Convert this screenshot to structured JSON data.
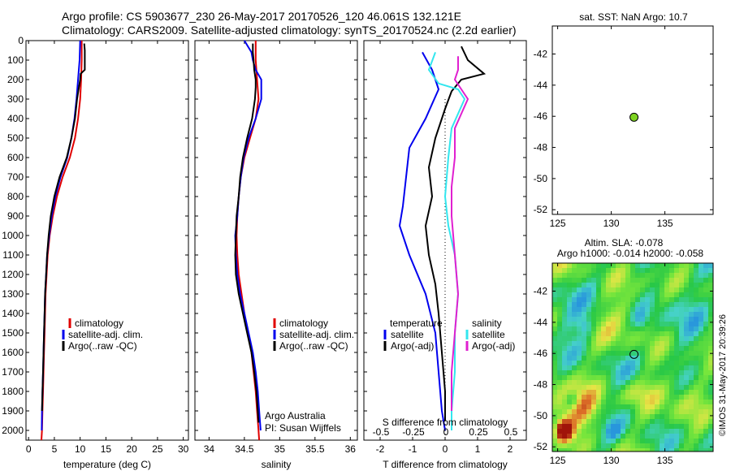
{
  "header": {
    "line1": "Argo profile: CS 5903677_230 26-May-2017 20170526_120 46.061S 132.121E",
    "line2": "Climatology: CARS2009. Satellite-adjusted climatology: synTS_20170524.nc (2.2d earlier)"
  },
  "colors": {
    "red": "#e00000",
    "blue": "#0000ee",
    "black": "#000000",
    "cyan": "#33e6ee",
    "magenta": "#e020d0",
    "green_dot": "#7ed321"
  },
  "chart_data": [
    {
      "id": "temperature",
      "type": "line",
      "xlabel": "temperature (deg C)",
      "xlim": [
        -0.5,
        31
      ],
      "ylim": [
        2050,
        0
      ],
      "xticks": [
        0,
        5,
        10,
        15,
        20,
        25,
        30
      ],
      "yticks": [
        0,
        100,
        200,
        300,
        400,
        500,
        600,
        700,
        800,
        900,
        1000,
        1100,
        1200,
        1300,
        1400,
        1500,
        1600,
        1700,
        1800,
        1900,
        2000
      ],
      "legend": [
        "climatology",
        "satellite-adj. clim.",
        "Argo(..raw -QC)"
      ],
      "series": [
        {
          "name": "climatology",
          "color": "red",
          "points": [
            [
              10.3,
              0
            ],
            [
              10.3,
              100
            ],
            [
              10.2,
              200
            ],
            [
              10,
              300
            ],
            [
              9.6,
              400
            ],
            [
              9,
              500
            ],
            [
              8,
              600
            ],
            [
              6.6,
              700
            ],
            [
              5.5,
              800
            ],
            [
              4.7,
              900
            ],
            [
              4.1,
              1000
            ],
            [
              3.7,
              1100
            ],
            [
              3.5,
              1200
            ],
            [
              3.3,
              1300
            ],
            [
              3.2,
              1400
            ],
            [
              3.1,
              1500
            ],
            [
              3,
              1600
            ],
            [
              2.9,
              1700
            ],
            [
              2.8,
              1800
            ],
            [
              2.7,
              1900
            ],
            [
              2.6,
              2000
            ],
            [
              2.5,
              2050
            ]
          ]
        },
        {
          "name": "satellite-adj. clim.",
          "color": "blue",
          "points": [
            [
              10,
              0
            ],
            [
              9.9,
              100
            ],
            [
              9.6,
              200
            ],
            [
              9.3,
              300
            ],
            [
              8.9,
              400
            ],
            [
              8.3,
              500
            ],
            [
              7.5,
              600
            ],
            [
              6.2,
              700
            ],
            [
              5.2,
              800
            ],
            [
              4.5,
              900
            ],
            [
              4,
              1000
            ],
            [
              3.6,
              1100
            ],
            [
              3.4,
              1200
            ],
            [
              3.2,
              1300
            ],
            [
              3.1,
              1400
            ],
            [
              3,
              1500
            ],
            [
              2.9,
              1600
            ],
            [
              2.8,
              1700
            ],
            [
              2.7,
              1800
            ],
            [
              2.6,
              1900
            ],
            [
              2.55,
              2000
            ]
          ]
        },
        {
          "name": "Argo(..raw -QC)",
          "color": "black",
          "points": [
            [
              10.8,
              15
            ],
            [
              10.9,
              50
            ],
            [
              10.9,
              100
            ],
            [
              10.9,
              150
            ],
            [
              10.1,
              170
            ],
            [
              10,
              200
            ],
            [
              9.7,
              250
            ],
            [
              9.4,
              300
            ],
            [
              9,
              400
            ],
            [
              8.3,
              500
            ],
            [
              7.4,
              600
            ],
            [
              6,
              700
            ],
            [
              5,
              800
            ],
            [
              4.3,
              900
            ],
            [
              3.9,
              1000
            ],
            [
              3.6,
              1100
            ],
            [
              3.4,
              1200
            ],
            [
              3.2,
              1300
            ],
            [
              3.1,
              1400
            ],
            [
              3,
              1500
            ],
            [
              2.9,
              1600
            ],
            [
              2.8,
              1700
            ],
            [
              2.7,
              1800
            ],
            [
              2.6,
              1900
            ]
          ]
        }
      ]
    },
    {
      "id": "salinity",
      "type": "line",
      "xlabel": "salinity",
      "xlim": [
        33.8,
        36.1
      ],
      "ylim": [
        2050,
        0
      ],
      "xticks": [
        34,
        34.5,
        35,
        35.5,
        36
      ],
      "legend": [
        "climatology",
        "satellite-adj. clim.",
        "Argo(..raw -QC)"
      ],
      "annotation": [
        "Argo Australia",
        "PI: Susan Wijffels"
      ],
      "series": [
        {
          "name": "climatology",
          "color": "red",
          "points": [
            [
              34.66,
              0
            ],
            [
              34.66,
              100
            ],
            [
              34.68,
              200
            ],
            [
              34.7,
              300
            ],
            [
              34.66,
              400
            ],
            [
              34.58,
              500
            ],
            [
              34.5,
              600
            ],
            [
              34.45,
              700
            ],
            [
              34.42,
              800
            ],
            [
              34.4,
              900
            ],
            [
              34.39,
              1000
            ],
            [
              34.4,
              1100
            ],
            [
              34.42,
              1200
            ],
            [
              34.46,
              1300
            ],
            [
              34.5,
              1400
            ],
            [
              34.55,
              1500
            ],
            [
              34.6,
              1600
            ],
            [
              34.63,
              1700
            ],
            [
              34.66,
              1800
            ],
            [
              34.68,
              1900
            ],
            [
              34.7,
              2000
            ],
            [
              34.71,
              2050
            ]
          ]
        },
        {
          "name": "satellite-adj. clim.",
          "color": "blue",
          "points": [
            [
              34.5,
              0
            ],
            [
              34.6,
              60
            ],
            [
              34.62,
              100
            ],
            [
              34.66,
              150
            ],
            [
              34.74,
              200
            ],
            [
              34.74,
              300
            ],
            [
              34.66,
              400
            ],
            [
              34.56,
              500
            ],
            [
              34.49,
              600
            ],
            [
              34.45,
              700
            ],
            [
              34.42,
              800
            ],
            [
              34.4,
              900
            ],
            [
              34.37,
              1000
            ],
            [
              34.38,
              1100
            ],
            [
              34.4,
              1200
            ],
            [
              34.44,
              1300
            ],
            [
              34.5,
              1400
            ],
            [
              34.56,
              1500
            ],
            [
              34.62,
              1600
            ],
            [
              34.66,
              1700
            ],
            [
              34.69,
              1800
            ],
            [
              34.71,
              1900
            ],
            [
              34.73,
              2000
            ]
          ]
        },
        {
          "name": "Argo(..raw -QC)",
          "color": "black",
          "points": [
            [
              34.62,
              15
            ],
            [
              34.62,
              60
            ],
            [
              34.63,
              100
            ],
            [
              34.64,
              150
            ],
            [
              34.66,
              200
            ],
            [
              34.66,
              240
            ],
            [
              34.65,
              300
            ],
            [
              34.61,
              400
            ],
            [
              34.54,
              500
            ],
            [
              34.48,
              600
            ],
            [
              34.44,
              700
            ],
            [
              34.42,
              800
            ],
            [
              34.39,
              900
            ],
            [
              34.38,
              1000
            ],
            [
              34.37,
              1100
            ],
            [
              34.38,
              1200
            ],
            [
              34.42,
              1300
            ],
            [
              34.48,
              1400
            ],
            [
              34.54,
              1500
            ],
            [
              34.6,
              1600
            ],
            [
              34.64,
              1700
            ],
            [
              34.67,
              1800
            ],
            [
              34.69,
              1900
            ],
            [
              34.7,
              1960
            ]
          ]
        }
      ]
    },
    {
      "id": "difference",
      "type": "line",
      "xlabel": "T difference from climatology",
      "xlabel2": "S difference from climatology",
      "xlim": [
        -2.5,
        2.5
      ],
      "ylim": [
        2050,
        0
      ],
      "xticks": [
        -2,
        -1,
        0,
        1,
        2
      ],
      "xticks_salinity": [
        "-0.5",
        "-0.25",
        "0",
        "0.25",
        "0.5"
      ],
      "legend_temperature": [
        "temperature",
        "satellite",
        "Argo(-adj)"
      ],
      "legend_salinity": [
        "salinity",
        "satellite",
        "Argo(-adj)"
      ],
      "series": [
        {
          "name": "temperature satellite",
          "color": "blue",
          "points": [
            [
              -0.7,
              60
            ],
            [
              -0.4,
              150
            ],
            [
              -0.2,
              250
            ],
            [
              -0.6,
              400
            ],
            [
              -1.1,
              550
            ],
            [
              -1.2,
              700
            ],
            [
              -1.3,
              850
            ],
            [
              -1.4,
              950
            ],
            [
              -1.1,
              1100
            ],
            [
              -0.6,
              1300
            ],
            [
              -0.3,
              1500
            ],
            [
              -0.2,
              1700
            ],
            [
              -0.1,
              1900
            ],
            [
              0,
              2000
            ]
          ]
        },
        {
          "name": "temperature Argo(-adj)",
          "color": "black",
          "points": [
            [
              0.5,
              30
            ],
            [
              0.7,
              100
            ],
            [
              1.2,
              170
            ],
            [
              0.5,
              200
            ],
            [
              0.2,
              260
            ],
            [
              0,
              350
            ],
            [
              -0.3,
              500
            ],
            [
              -0.5,
              650
            ],
            [
              -0.4,
              800
            ],
            [
              -0.6,
              950
            ],
            [
              -0.5,
              1100
            ],
            [
              -0.3,
              1250
            ],
            [
              -0.2,
              1400
            ],
            [
              -0.1,
              1600
            ],
            [
              0,
              1800
            ],
            [
              0,
              1950
            ]
          ]
        },
        {
          "name": "salinity satellite",
          "color": "cyan",
          "points": [
            [
              -0.3,
              60
            ],
            [
              -0.5,
              150
            ],
            [
              -0.2,
              220
            ],
            [
              0.4,
              250
            ],
            [
              0.6,
              300
            ],
            [
              0.2,
              450
            ],
            [
              0.1,
              600
            ],
            [
              0,
              800
            ],
            [
              0.1,
              950
            ],
            [
              0.3,
              1100
            ],
            [
              0.4,
              1300
            ],
            [
              0.3,
              1500
            ],
            [
              0.3,
              1700
            ],
            [
              0.2,
              1900
            ],
            [
              0.2,
              2000
            ]
          ]
        },
        {
          "name": "salinity Argo(-adj)",
          "color": "magenta",
          "points": [
            [
              0.4,
              80
            ],
            [
              0.4,
              150
            ],
            [
              0.3,
              200
            ],
            [
              0.5,
              250
            ],
            [
              0.7,
              300
            ],
            [
              0.3,
              450
            ],
            [
              0.3,
              600
            ],
            [
              0.2,
              750
            ],
            [
              0.2,
              900
            ],
            [
              0.3,
              1100
            ],
            [
              0.4,
              1300
            ],
            [
              0.3,
              1500
            ],
            [
              0.2,
              1700
            ],
            [
              0.2,
              1900
            ]
          ]
        }
      ]
    },
    {
      "id": "sst_map",
      "type": "scatter",
      "title": "sat. SST: NaN Argo: 10.7",
      "xlim": [
        124.5,
        139.5
      ],
      "ylim": [
        -52.3,
        -40.2
      ],
      "xticks": [
        125,
        130,
        135
      ],
      "yticks": [
        -42,
        -44,
        -46,
        -48,
        -50,
        -52
      ],
      "points": [
        [
          132.12,
          -46.06
        ]
      ]
    },
    {
      "id": "sla_map",
      "type": "heatmap",
      "title": "Altim. SLA: -0.078",
      "subtitle": "Argo h1000: -0.014 h2000: -0.058",
      "xlim": [
        124.5,
        139.5
      ],
      "ylim": [
        -52.3,
        -40.2
      ],
      "xticks": [
        125,
        130,
        135
      ],
      "yticks": [
        -42,
        -44,
        -46,
        -48,
        -50,
        -52
      ],
      "marker": [
        132.12,
        -46.06
      ]
    }
  ],
  "credit": "©IMOS 31-May-2017 20:39:26"
}
